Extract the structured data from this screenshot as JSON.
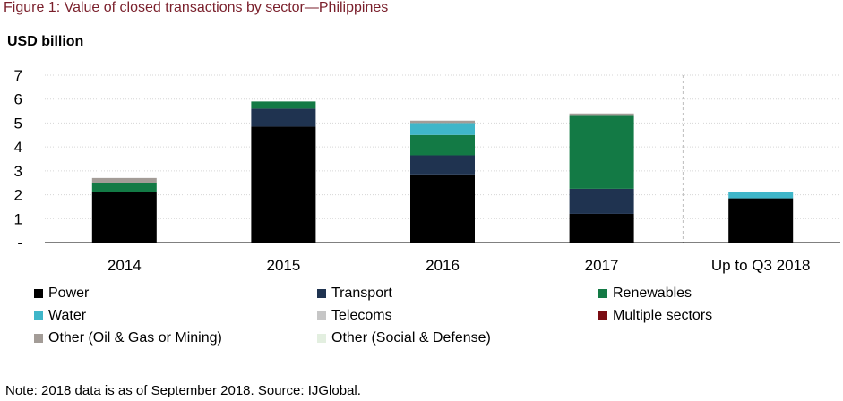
{
  "figure_title": "Figure 1: Value of closed transactions by sector—Philippines",
  "note": "Note: 2018 data is as of September 2018. Source: IJGlobal.",
  "colors": {
    "Power": "#000000",
    "Transport": "#1f3350",
    "Renewables": "#137a45",
    "Water": "#3fb6c9",
    "Telecoms": "#c6c6c6",
    "Multiple sectors": "#7a0c12",
    "Other (Oil & Gas or Mining)": "#a39c97",
    "Other (Social & Defense)": "#e3efe0"
  },
  "chart_data": {
    "type": "bar",
    "stacked": true,
    "title": "",
    "xlabel": "",
    "ylabel": "USD billion",
    "ylim": [
      0,
      7
    ],
    "yticks": [
      0,
      1,
      2,
      3,
      4,
      5,
      6,
      7
    ],
    "ytick_labels": [
      "-",
      "1",
      "2",
      "3",
      "4",
      "5",
      "6",
      "7"
    ],
    "categories": [
      "2014",
      "2015",
      "2016",
      "2017",
      "Up to Q3 2018"
    ],
    "grid": true,
    "legend_placement": "bottom",
    "series": [
      {
        "name": "Power",
        "values": [
          2.1,
          4.85,
          2.85,
          1.2,
          1.85
        ]
      },
      {
        "name": "Transport",
        "values": [
          0,
          0.75,
          0.8,
          1.05,
          0
        ]
      },
      {
        "name": "Renewables",
        "values": [
          0.4,
          0.3,
          0.85,
          3.05,
          0
        ]
      },
      {
        "name": "Water",
        "values": [
          0,
          0,
          0.5,
          0,
          0.25
        ]
      },
      {
        "name": "Telecoms",
        "values": [
          0,
          0,
          0,
          0,
          0
        ]
      },
      {
        "name": "Multiple sectors",
        "values": [
          0,
          0,
          0,
          0,
          0
        ]
      },
      {
        "name": "Other (Oil & Gas or Mining)",
        "values": [
          0.2,
          0,
          0.1,
          0.1,
          0
        ]
      },
      {
        "name": "Other (Social & Defense)",
        "values": [
          0,
          0,
          0,
          0,
          0
        ]
      }
    ]
  }
}
